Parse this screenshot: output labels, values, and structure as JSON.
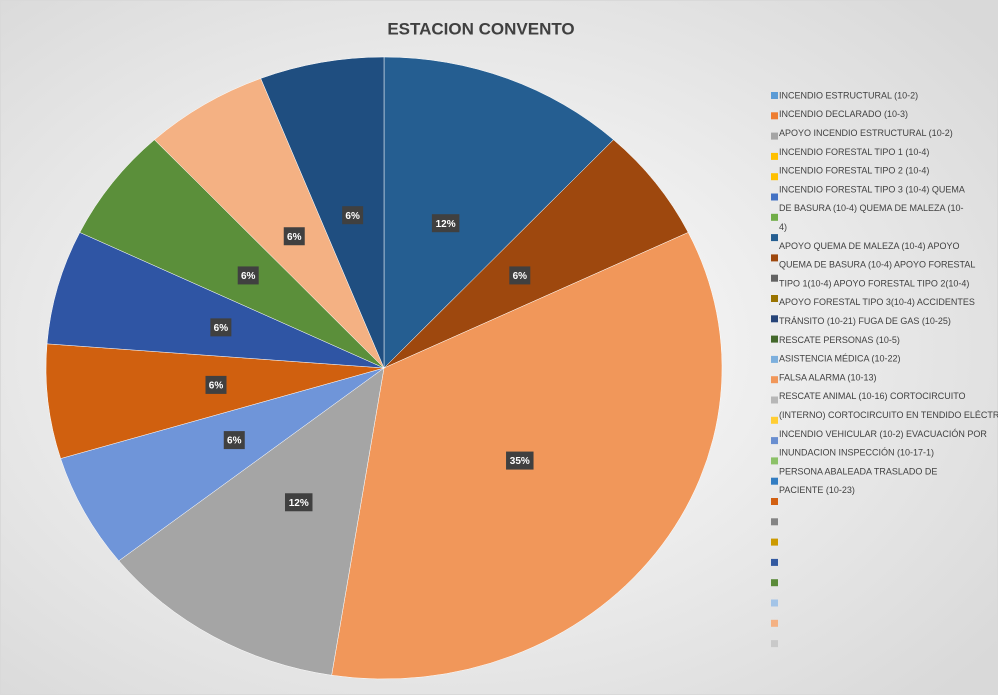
{
  "chart_data": {
    "type": "pie",
    "title": "ESTACION CONVENTO",
    "values": [
      12,
      6,
      35,
      12,
      6,
      6,
      6,
      6,
      6,
      6
    ],
    "value_labels": [
      "12%",
      "6%",
      "35%",
      "12%",
      "6%",
      "6%",
      "6%",
      "6%",
      "6%",
      "6%"
    ],
    "colors": [
      "#255e91",
      "#9e480e",
      "#f1975a",
      "#a5a5a5",
      "#6f95d9",
      "#d0600f",
      "#2f55a4",
      "#5b8f3a",
      "#f4b183",
      "#1f4e80"
    ],
    "legend": {
      "lines": [
        "INCENDIO ESTRUCTURAL (10-2)",
        "INCENDIO DECLARADO (10-3)",
        "APOYO INCENDIO ESTRUCTURAL (10-2)",
        "INCENDIO  FORESTAL  TIPO  1  (10-4)",
        "INCENDIO FORESTAL TIPO 2 (10-4)",
        "INCENDIO FORESTAL TIPO 3 (10-4)    QUEMA",
        "DE BASURA (10-4)      QUEMA DE MALEZA (10-",
        "4)",
        "APOYO QUEMA DE MALEZA (10-4)    APOYO",
        "QUEMA DE BASURA (10-4)    APOYO FORESTAL",
        "TIPO 1(10-4)    APOYO FORESTAL TIPO 2(10-4)",
        "APOYO FORESTAL TIPO 3(10-4)    ACCIDENTES",
        "TRÁNSITO (10-21)    FUGA DE GAS (10-25)",
        "RESCATE PERSONAS (10-5)",
        "ASISTENCIA MÉDICA (10-22)",
        "FALSA ALARMA (10-13)",
        "RESCATE ANIMAL (10-16)    CORTOCIRCUITO",
        "(INTERNO)    CORTOCIRCUITO EN TENDIDO ELÉCTRICO",
        "INCENDIO VEHICULAR (10-2)    EVACUACIÓN POR",
        "INUNDACION    INSPECCIÓN (10-17-1)",
        "PERSONA  ABALEADA      TRASLADO DE",
        "PACIENTE (10-23)"
      ],
      "colors": [
        "#5b9bd5",
        "#ed7d31",
        "#a5a5a5",
        "#ffc000",
        "#ffc000",
        "#4472c4",
        "#70ad47",
        "#255e91",
        "#9e480e",
        "#636363",
        "#997300",
        "#264478",
        "#43682b",
        "#7cafdd",
        "#f1975a",
        "#b7b7b7",
        "#ffcd33",
        "#698ed0",
        "#8cc168",
        "#327dc2",
        "#d26012",
        "#848484",
        "#cc9a00",
        "#335aa1",
        "#5a8a39",
        "#a3c4e7",
        "#f4b183",
        "#c9c9c9"
      ]
    }
  }
}
